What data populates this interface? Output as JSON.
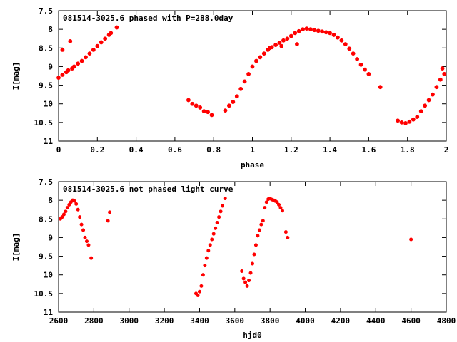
{
  "chart_data": [
    {
      "type": "scatter",
      "title": "081514-3025.6 phased with P=288.0day",
      "xlabel": "phase",
      "ylabel": "I[mag]",
      "xlim": [
        0,
        2
      ],
      "ylim": [
        7.5,
        11
      ],
      "y_inverted": true,
      "grid": false,
      "legend": "none",
      "marker_color": "#ff0000",
      "x_ticks": [
        "0",
        "0.2",
        "0.4",
        "0.6",
        "0.8",
        "1",
        "1.2",
        "1.4",
        "1.6",
        "1.8",
        "2"
      ],
      "y_ticks": [
        "7.5",
        "8",
        "8.5",
        "9",
        "9.5",
        "10",
        "10.5",
        "11"
      ],
      "series": [
        {
          "x": [
            0.0,
            0.02,
            0.04,
            0.05,
            0.07,
            0.08,
            0.1,
            0.12,
            0.14,
            0.16,
            0.18,
            0.2,
            0.22,
            0.24,
            0.26,
            0.27,
            0.3,
            0.02,
            0.06,
            0.67,
            0.69,
            0.71,
            0.73,
            0.75,
            0.77,
            0.79,
            0.86,
            0.88,
            0.9,
            0.92,
            0.94,
            0.96,
            0.98,
            1.0,
            1.02,
            1.04,
            1.06,
            1.08,
            1.1,
            1.12,
            1.14,
            1.16,
            1.18,
            1.2,
            1.22,
            1.24,
            1.26,
            1.28,
            1.3,
            1.32,
            1.34,
            1.36,
            1.38,
            1.4,
            1.42,
            1.44,
            1.46,
            1.48,
            1.5,
            1.52,
            1.54,
            1.56,
            1.58,
            1.6,
            1.09,
            1.15,
            1.23,
            1.66,
            1.75,
            1.77,
            1.79,
            1.81,
            1.83,
            1.85,
            1.87,
            1.89,
            1.91,
            1.93,
            1.95,
            1.97,
            1.99,
            1.98
          ],
          "y": [
            9.3,
            9.22,
            9.15,
            9.1,
            9.05,
            9.0,
            8.92,
            8.85,
            8.75,
            8.65,
            8.55,
            8.45,
            8.35,
            8.25,
            8.15,
            8.1,
            7.95,
            8.55,
            8.32,
            9.9,
            10.0,
            10.05,
            10.1,
            10.2,
            10.22,
            10.3,
            10.18,
            10.05,
            9.95,
            9.8,
            9.6,
            9.4,
            9.2,
            9.0,
            8.85,
            8.75,
            8.65,
            8.55,
            8.48,
            8.42,
            8.36,
            8.3,
            8.25,
            8.18,
            8.1,
            8.05,
            8.0,
            7.98,
            8.0,
            8.02,
            8.04,
            8.06,
            8.08,
            8.1,
            8.15,
            8.22,
            8.3,
            8.4,
            8.52,
            8.65,
            8.8,
            8.95,
            9.08,
            9.2,
            8.5,
            8.45,
            8.4,
            9.55,
            10.45,
            10.5,
            10.52,
            10.48,
            10.42,
            10.35,
            10.2,
            10.05,
            9.9,
            9.75,
            9.55,
            9.35,
            9.2,
            9.05
          ]
        }
      ]
    },
    {
      "type": "scatter",
      "title": "081514-3025.6 not phased light curve",
      "xlabel": "hjd0",
      "ylabel": "I[mag]",
      "xlim": [
        2600,
        4800
      ],
      "ylim": [
        7.5,
        11
      ],
      "y_inverted": true,
      "grid": false,
      "legend": "none",
      "marker_color": "#ff0000",
      "x_ticks": [
        "2600",
        "2800",
        "3000",
        "3200",
        "3400",
        "3600",
        "3800",
        "4000",
        "4200",
        "4400",
        "4600",
        "4800"
      ],
      "y_ticks": [
        "7.5",
        "8",
        "8.5",
        "9",
        "9.5",
        "10",
        "10.5",
        "11"
      ],
      "series": [
        {
          "x": [
            2610,
            2620,
            2630,
            2640,
            2650,
            2660,
            2670,
            2680,
            2690,
            2700,
            2710,
            2720,
            2730,
            2740,
            2750,
            2760,
            2770,
            2785,
            2880,
            2890,
            3380,
            3390,
            3400,
            3410,
            3420,
            3430,
            3440,
            3450,
            3460,
            3470,
            3480,
            3490,
            3500,
            3510,
            3520,
            3530,
            3545,
            3640,
            3650,
            3660,
            3670,
            3680,
            3690,
            3700,
            3710,
            3720,
            3730,
            3740,
            3750,
            3760,
            3770,
            3780,
            3790,
            3800,
            3810,
            3820,
            3830,
            3840,
            3850,
            3860,
            3870,
            3890,
            3900,
            4600
          ],
          "y": [
            8.5,
            8.45,
            8.38,
            8.3,
            8.2,
            8.12,
            8.05,
            8.0,
            8.02,
            8.1,
            8.25,
            8.45,
            8.65,
            8.8,
            9.0,
            9.1,
            9.2,
            9.55,
            8.55,
            8.32,
            10.5,
            10.55,
            10.45,
            10.3,
            10.0,
            9.75,
            9.55,
            9.35,
            9.2,
            9.05,
            8.9,
            8.75,
            8.6,
            8.45,
            8.3,
            8.15,
            7.95,
            9.9,
            10.1,
            10.2,
            10.3,
            10.15,
            9.95,
            9.7,
            9.45,
            9.2,
            8.95,
            8.8,
            8.65,
            8.55,
            8.2,
            8.05,
            7.97,
            7.95,
            7.98,
            8.0,
            8.02,
            8.05,
            8.12,
            8.2,
            8.28,
            8.85,
            9.0,
            9.05
          ]
        }
      ]
    }
  ]
}
